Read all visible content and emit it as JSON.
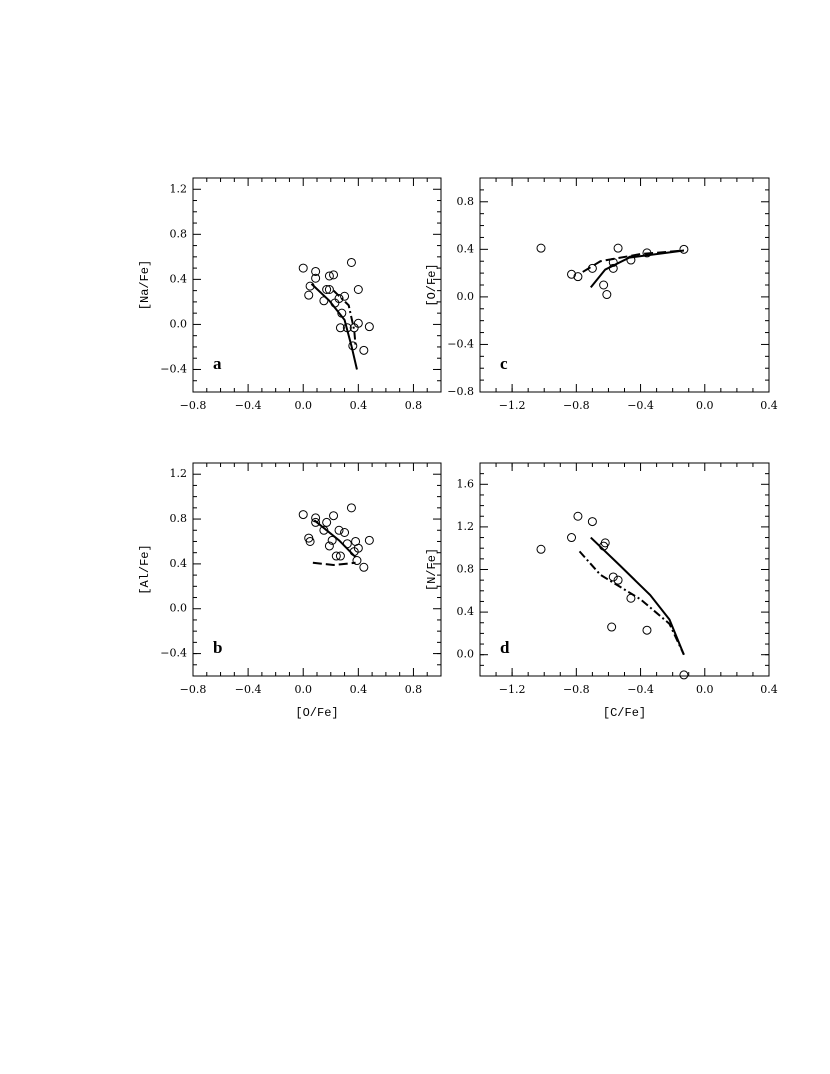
{
  "chart_data": [
    {
      "type": "scatter",
      "label": "a",
      "ylabel": "[Na/Fe]",
      "xlim": [
        -0.8,
        1.0
      ],
      "ylim": [
        -0.6,
        1.3
      ],
      "xticks": [
        {
          "value": -0.8,
          "label": "−0.8"
        },
        {
          "value": -0.4,
          "label": "−0.4"
        },
        {
          "value": 0,
          "label": "0.0"
        },
        0.4,
        0.8
      ],
      "yticks": [
        {
          "value": -0.4,
          "label": "−0.4"
        },
        {
          "value": 0,
          "label": "0.0"
        },
        0.4,
        0.8,
        1.2
      ],
      "series": [
        {
          "style": "markers",
          "color": "#000000",
          "x": [
            0.0,
            0.09,
            0.09,
            0.05,
            0.04,
            0.19,
            0.22,
            0.35,
            0.17,
            0.19,
            0.15,
            0.23,
            0.26,
            0.3,
            0.4,
            0.28,
            0.27,
            0.32,
            0.37,
            0.4,
            0.48,
            0.36,
            0.44
          ],
          "values": [
            0.5,
            0.47,
            0.41,
            0.34,
            0.26,
            0.43,
            0.44,
            0.55,
            0.31,
            0.31,
            0.21,
            0.19,
            0.23,
            0.25,
            0.31,
            0.1,
            -0.03,
            -0.03,
            -0.03,
            0.01,
            -0.02,
            -0.19,
            -0.23
          ]
        },
        {
          "style": "solid",
          "color": "#000000",
          "x": [
            0.06,
            0.19,
            0.3,
            0.35,
            0.39
          ],
          "values": [
            0.36,
            0.21,
            0.04,
            -0.19,
            -0.4
          ]
        },
        {
          "style": "dashdot",
          "color": "#000000",
          "x": [
            0.22,
            0.33,
            0.37,
            0.38
          ],
          "values": [
            0.3,
            0.17,
            -0.05,
            -0.19
          ]
        }
      ]
    },
    {
      "type": "scatter",
      "label": "b",
      "xlabel": "[O/Fe]",
      "ylabel": "[Al/Fe]",
      "xlim": [
        -0.8,
        1.0
      ],
      "ylim": [
        -0.6,
        1.3
      ],
      "xticks": [
        {
          "value": -0.8,
          "label": "−0.8"
        },
        {
          "value": -0.4,
          "label": "−0.4"
        },
        {
          "value": 0,
          "label": "0.0"
        },
        0.4,
        0.8
      ],
      "yticks": [
        {
          "value": -0.4,
          "label": "−0.4"
        },
        {
          "value": 0,
          "label": "0.0"
        },
        0.4,
        0.8,
        1.2
      ],
      "series": [
        {
          "style": "markers",
          "color": "#000000",
          "x": [
            0.0,
            0.09,
            0.09,
            0.04,
            0.05,
            0.22,
            0.35,
            0.17,
            0.15,
            0.21,
            0.19,
            0.26,
            0.3,
            0.32,
            0.38,
            0.48,
            0.37,
            0.4,
            0.24,
            0.27,
            0.39,
            0.44
          ],
          "values": [
            0.84,
            0.81,
            0.77,
            0.63,
            0.6,
            0.83,
            0.9,
            0.77,
            0.7,
            0.61,
            0.56,
            0.7,
            0.68,
            0.58,
            0.6,
            0.61,
            0.51,
            0.54,
            0.47,
            0.47,
            0.43,
            0.37
          ]
        },
        {
          "style": "solid",
          "color": "#000000",
          "x": [
            0.08,
            0.26,
            0.38
          ],
          "values": [
            0.79,
            0.61,
            0.46
          ]
        },
        {
          "style": "dashed",
          "color": "#000000",
          "x": [
            0.07,
            0.22,
            0.38
          ],
          "values": [
            0.41,
            0.39,
            0.41
          ]
        }
      ]
    },
    {
      "type": "scatter",
      "label": "c",
      "ylabel": "[O/Fe]",
      "xlim": [
        -1.4,
        0.4
      ],
      "ylim": [
        -0.8,
        1.0
      ],
      "xticks": [
        {
          "value": -1.2,
          "label": "−1.2"
        },
        {
          "value": -0.8,
          "label": "−0.8"
        },
        {
          "value": -0.4,
          "label": "−0.4"
        },
        {
          "value": 0,
          "label": "0.0"
        },
        0.4
      ],
      "yticks": [
        {
          "value": -0.8,
          "label": "−0.8"
        },
        {
          "value": -0.4,
          "label": "−0.4"
        },
        {
          "value": 0,
          "label": "0.0"
        },
        0.4,
        0.8
      ],
      "series": [
        {
          "style": "markers",
          "color": "#000000",
          "x": [
            -1.02,
            -0.83,
            -0.79,
            -0.7,
            -0.54,
            -0.57,
            -0.57,
            -0.63,
            -0.61,
            -0.46,
            -0.36,
            -0.13
          ],
          "values": [
            0.41,
            0.19,
            0.17,
            0.24,
            0.41,
            0.29,
            0.24,
            0.1,
            0.02,
            0.31,
            0.37,
            0.4
          ]
        },
        {
          "style": "solid",
          "color": "#000000",
          "x": [
            -0.71,
            -0.62,
            -0.47,
            -0.13
          ],
          "values": [
            0.08,
            0.23,
            0.33,
            0.39
          ]
        },
        {
          "style": "dashed",
          "color": "#000000",
          "x": [
            -0.76,
            -0.65,
            -0.4,
            -0.13
          ],
          "values": [
            0.21,
            0.3,
            0.36,
            0.39
          ]
        }
      ]
    },
    {
      "type": "scatter",
      "label": "d",
      "xlabel": "[C/Fe]",
      "ylabel": "[N/Fe]",
      "xlim": [
        -1.4,
        0.4
      ],
      "ylim": [
        -0.2,
        1.8
      ],
      "xticks": [
        {
          "value": -1.2,
          "label": "−1.2"
        },
        {
          "value": -0.8,
          "label": "−0.8"
        },
        {
          "value": -0.4,
          "label": "−0.4"
        },
        {
          "value": 0,
          "label": "0.0"
        },
        0.4
      ],
      "yticks": [
        {
          "value": 0,
          "label": "0.0"
        },
        0.4,
        0.8,
        1.2,
        1.6
      ],
      "series": [
        {
          "style": "markers",
          "color": "#000000",
          "x": [
            -1.02,
            -0.83,
            -0.79,
            -0.7,
            -0.62,
            -0.63,
            -0.57,
            -0.54,
            -0.46,
            -0.58,
            -0.36,
            -0.13
          ],
          "values": [
            0.99,
            1.1,
            1.3,
            1.25,
            1.05,
            1.02,
            0.73,
            0.7,
            0.53,
            0.26,
            0.23,
            -0.19
          ]
        },
        {
          "style": "solid",
          "color": "#000000",
          "x": [
            -0.71,
            -0.53,
            -0.34,
            -0.22,
            -0.13
          ],
          "values": [
            1.1,
            0.84,
            0.56,
            0.33,
            0.0
          ]
        },
        {
          "style": "dashdot",
          "color": "#000000",
          "x": [
            -0.78,
            -0.65,
            -0.4,
            -0.22,
            -0.13
          ],
          "values": [
            0.97,
            0.75,
            0.52,
            0.29,
            0.0
          ]
        }
      ]
    }
  ]
}
